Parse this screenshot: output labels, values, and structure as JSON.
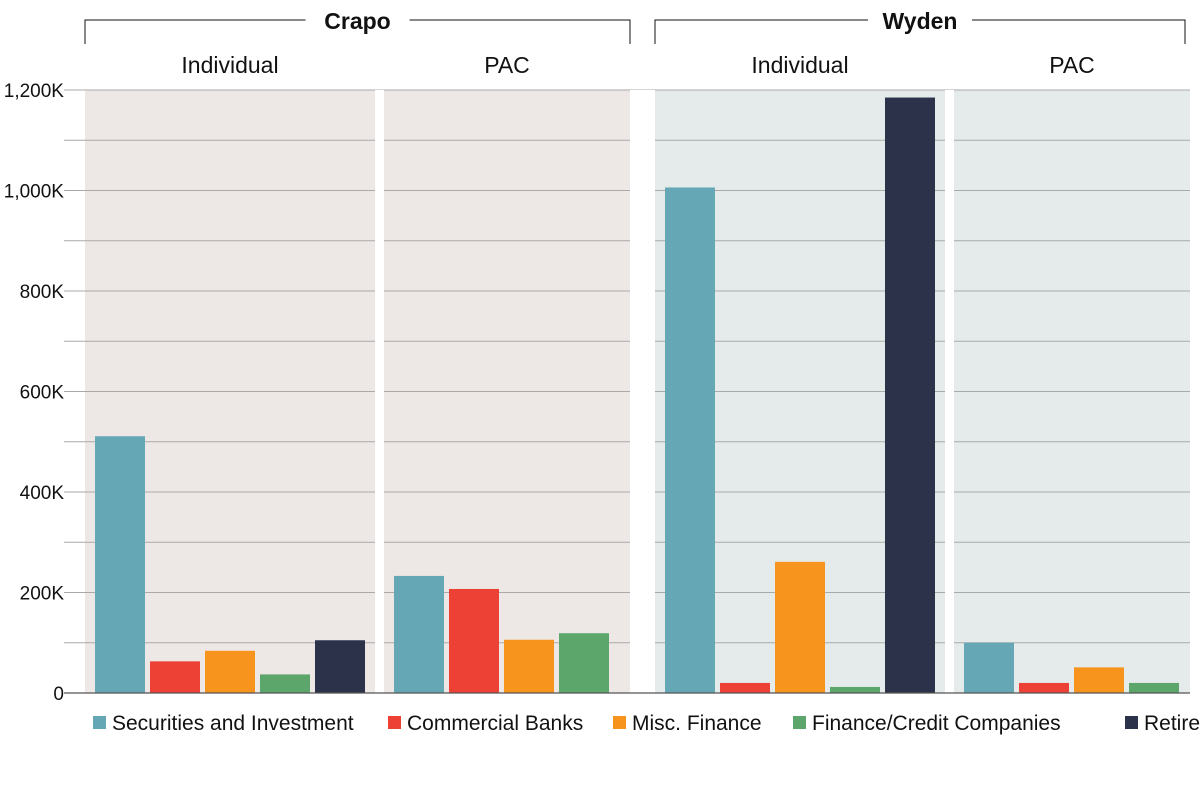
{
  "chart_data": {
    "type": "bar",
    "groups": [
      {
        "name": "Crapo",
        "background": "#ede7e6",
        "panels": [
          {
            "name": "Individual",
            "values": [
              511000,
              63000,
              84000,
              37000,
              105000
            ]
          },
          {
            "name": "PAC",
            "values": [
              233000,
              207000,
              106000,
              119000,
              null
            ]
          }
        ]
      },
      {
        "name": "Wyden",
        "background": "#e5eaea",
        "panels": [
          {
            "name": "Individual",
            "values": [
              1006000,
              20000,
              261000,
              12000,
              1185000
            ]
          },
          {
            "name": "PAC",
            "values": [
              100000,
              20000,
              51000,
              20000,
              null
            ]
          }
        ]
      }
    ],
    "series": [
      {
        "name": "Securities and Investment",
        "color": "#66a7b5"
      },
      {
        "name": "Commercial Banks",
        "color": "#ee4136"
      },
      {
        "name": "Misc. Finance",
        "color": "#f7941d"
      },
      {
        "name": "Finance/Credit Companies",
        "color": "#5da66b"
      },
      {
        "name": "Retired",
        "color": "#2c324a"
      }
    ],
    "ylim": [
      0,
      1200000
    ],
    "ytick_values": [
      0,
      200000,
      400000,
      600000,
      800000,
      1000000,
      1200000
    ],
    "ytick_labels": [
      "0",
      "200K",
      "400K",
      "600K",
      "800K",
      "1,000K",
      "1,200K"
    ],
    "grid": true,
    "legend_position": "bottom"
  }
}
